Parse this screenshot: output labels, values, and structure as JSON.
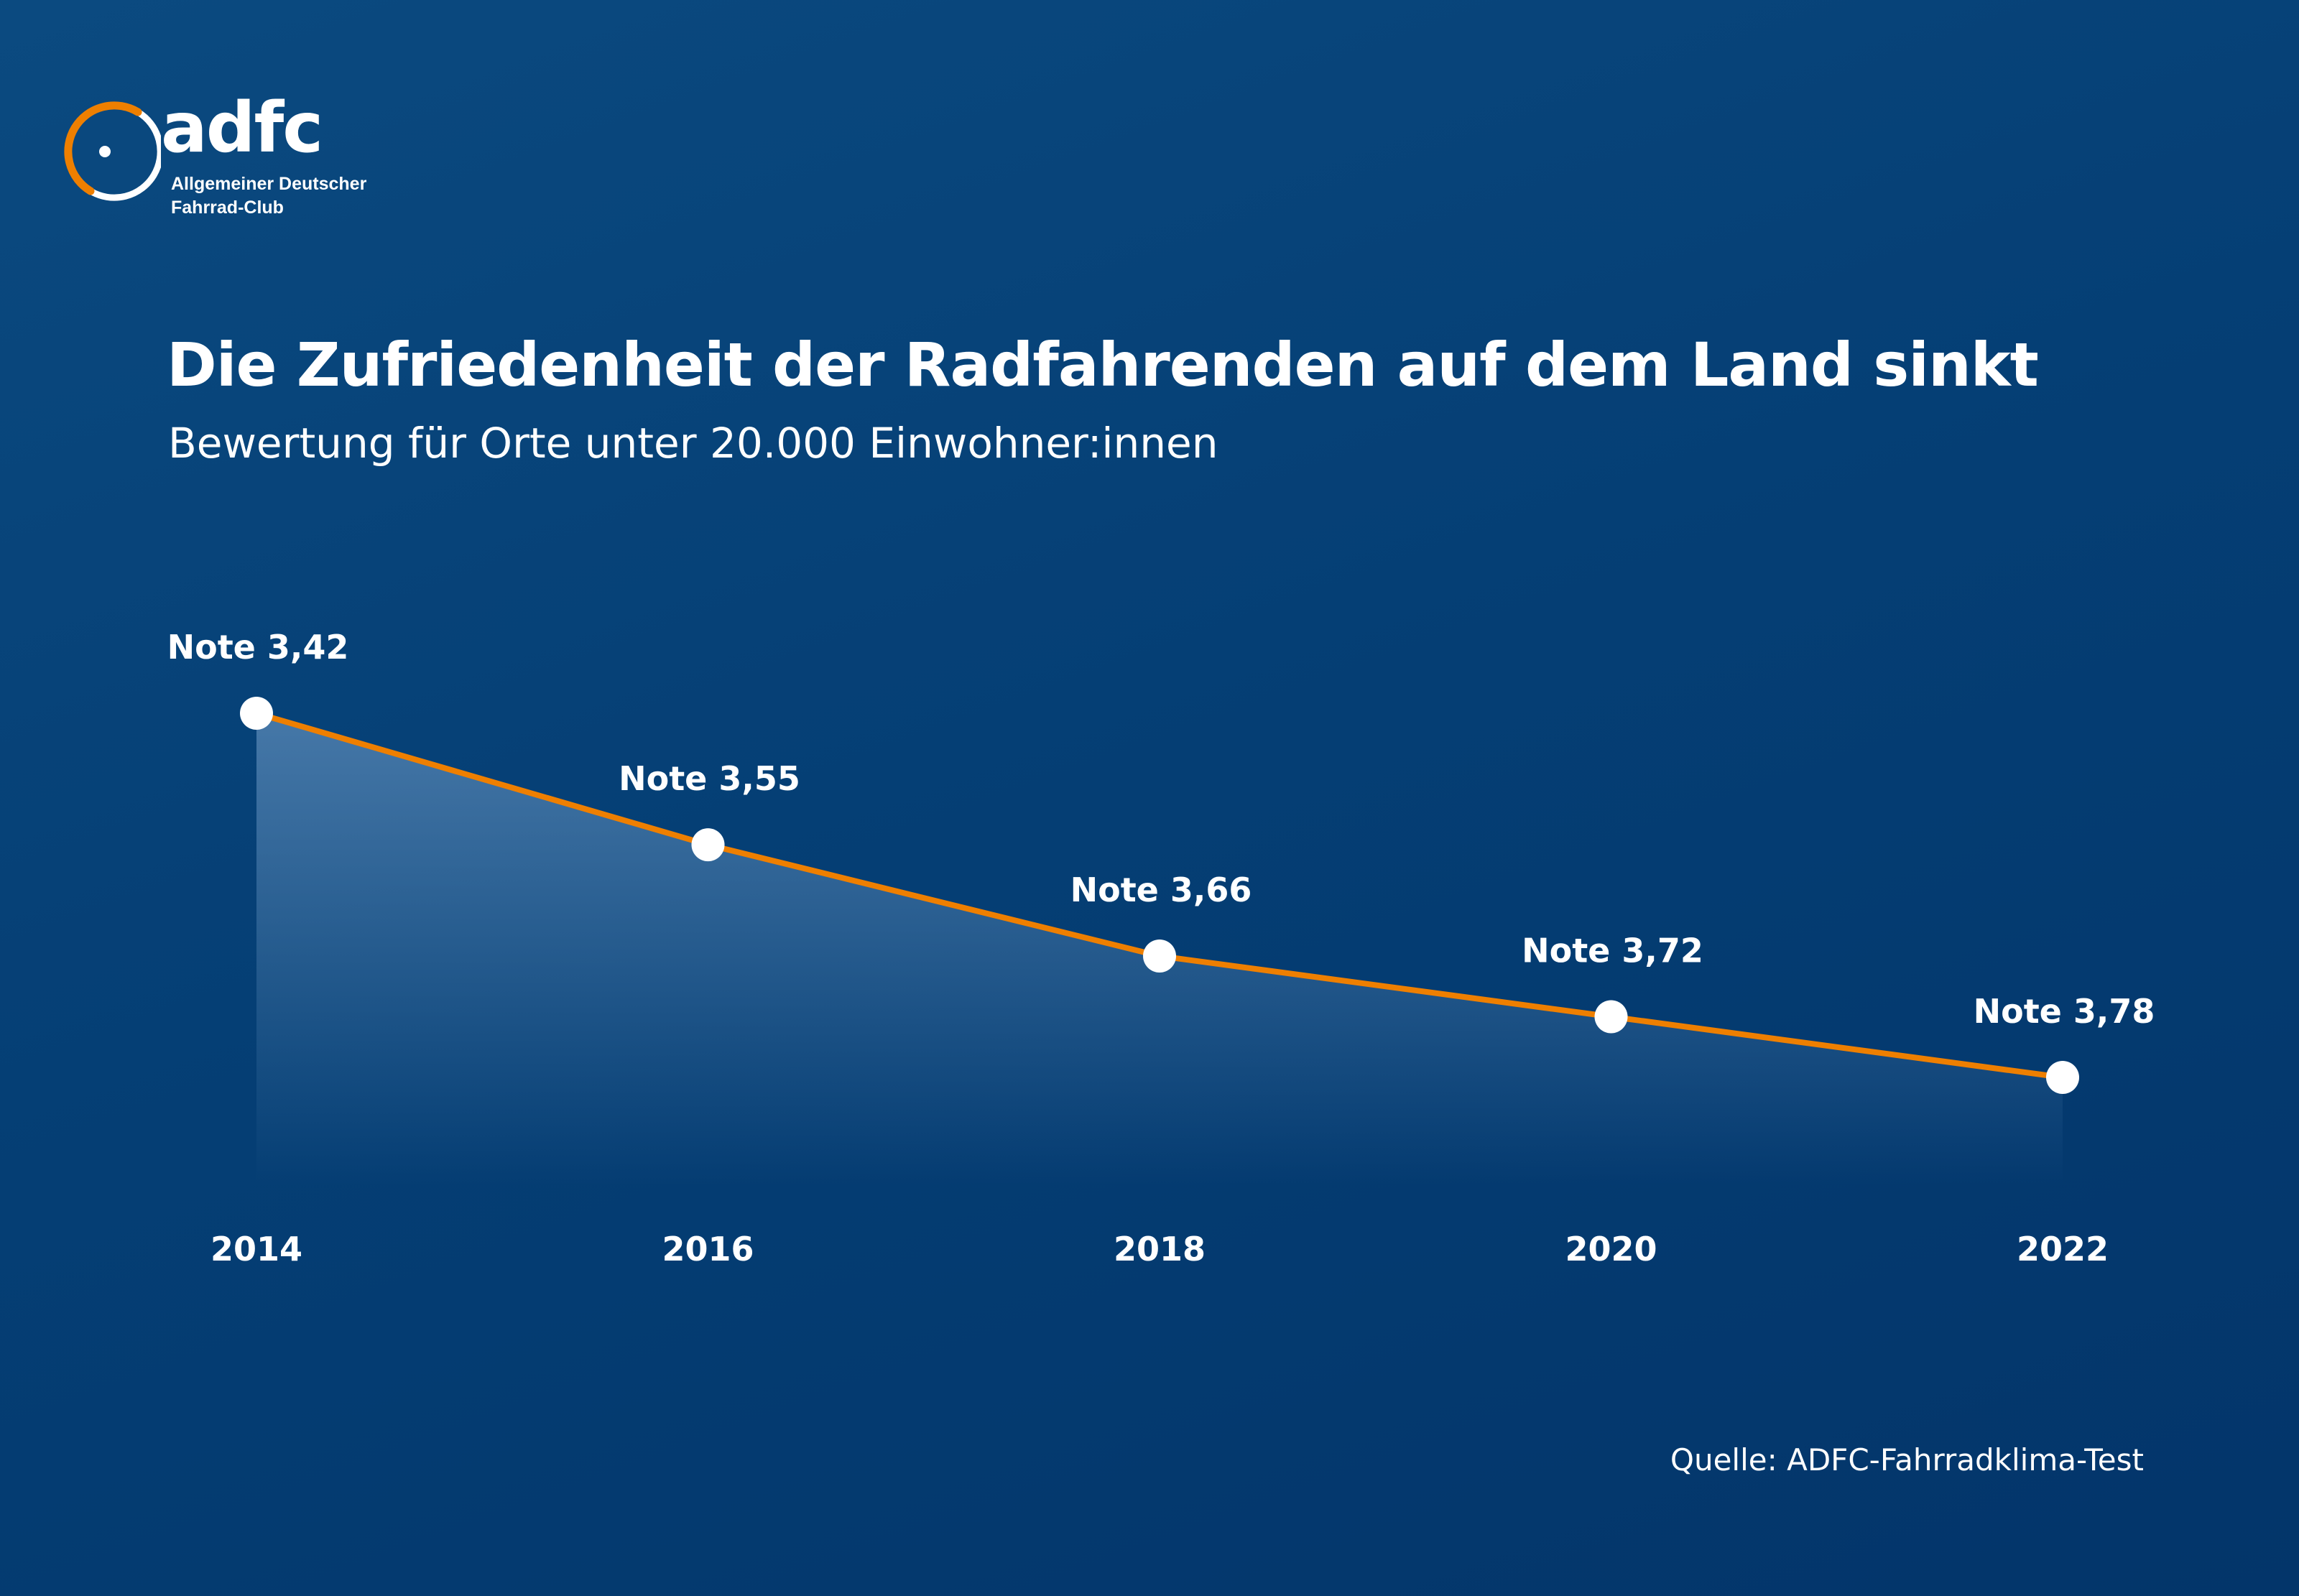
{
  "logo": {
    "wordmark": "adfc",
    "line1": "Allgemeiner Deutscher",
    "line2": "Fahrrad-Club",
    "colors": {
      "orange": "#ee7f00",
      "white": "#ffffff"
    }
  },
  "colors": {
    "line": "#ee7f00",
    "marker": "#ffffff",
    "text": "#ffffff",
    "area_top": "#5b8ab8"
  },
  "source": "Quelle: ADFC-Fahrradklima-Test",
  "chart_data": {
    "type": "line",
    "title": "Die Zufriedenheit der Radfahrenden auf dem Land sinkt",
    "subtitle": "Bewertung für Orte unter 20.000 Einwohner:innen",
    "categories": [
      "2014",
      "2016",
      "2018",
      "2020",
      "2022"
    ],
    "series": [
      {
        "values": [
          3.42,
          3.55,
          3.66,
          3.72,
          3.78
        ],
        "labels": [
          "Note 3,42",
          "Note 3,55",
          "Note 3,66",
          "Note 3,72",
          "Note 3,78"
        ]
      }
    ],
    "y_inverted": true,
    "ylim": [
      3.42,
      3.78
    ],
    "grid": false,
    "legend": "none",
    "area_fill": true
  }
}
